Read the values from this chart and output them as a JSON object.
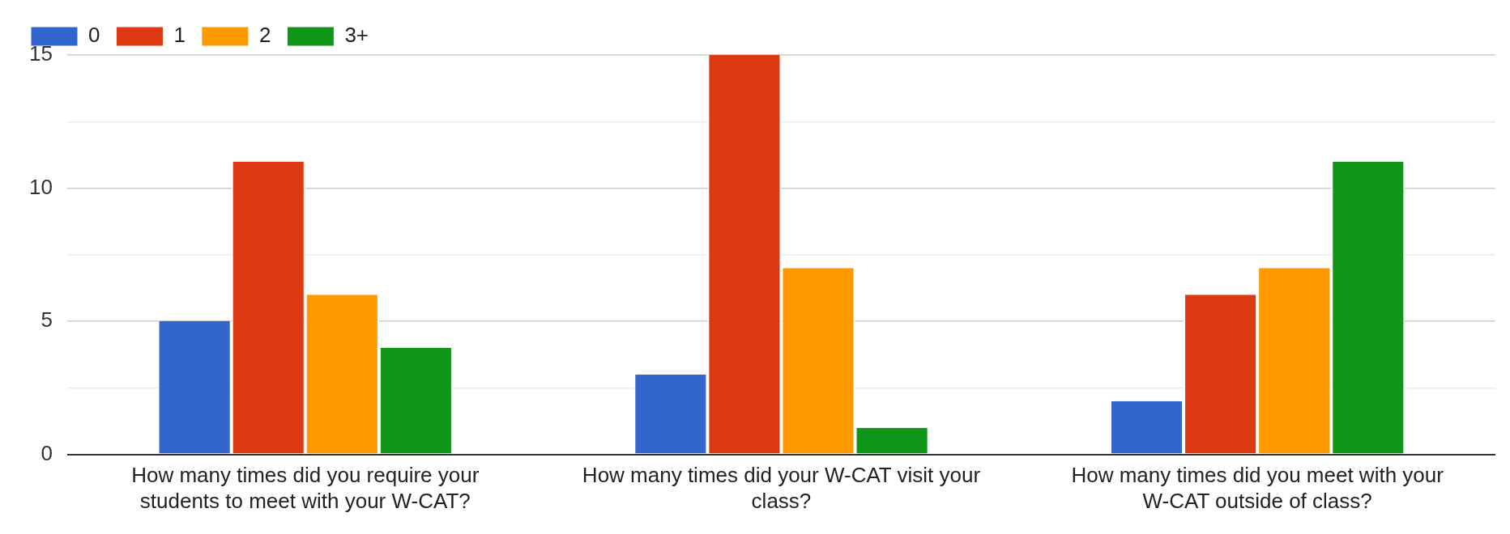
{
  "chart_data": {
    "type": "bar",
    "categories": [
      "How many times did you require your students to meet with your W-CAT?",
      "How many times did your W-CAT visit your class?",
      "How many times did you meet with your W-CAT outside of class?"
    ],
    "series": [
      {
        "name": "0",
        "color": "#3366cc",
        "values": [
          5,
          3,
          2
        ]
      },
      {
        "name": "1",
        "color": "#dc3912",
        "values": [
          11,
          15,
          6
        ]
      },
      {
        "name": "2",
        "color": "#ff9900",
        "values": [
          6,
          7,
          7
        ]
      },
      {
        "name": "3+",
        "color": "#109618",
        "values": [
          4,
          1,
          11
        ]
      }
    ],
    "ylim": [
      0,
      15
    ],
    "yticks": [
      0,
      {
        "value": 2.5,
        "label": null
      },
      5,
      {
        "value": 7.5,
        "label": null
      },
      10,
      {
        "value": 12.5,
        "label": null
      },
      15
    ],
    "grid": "y",
    "legend": "top left"
  }
}
